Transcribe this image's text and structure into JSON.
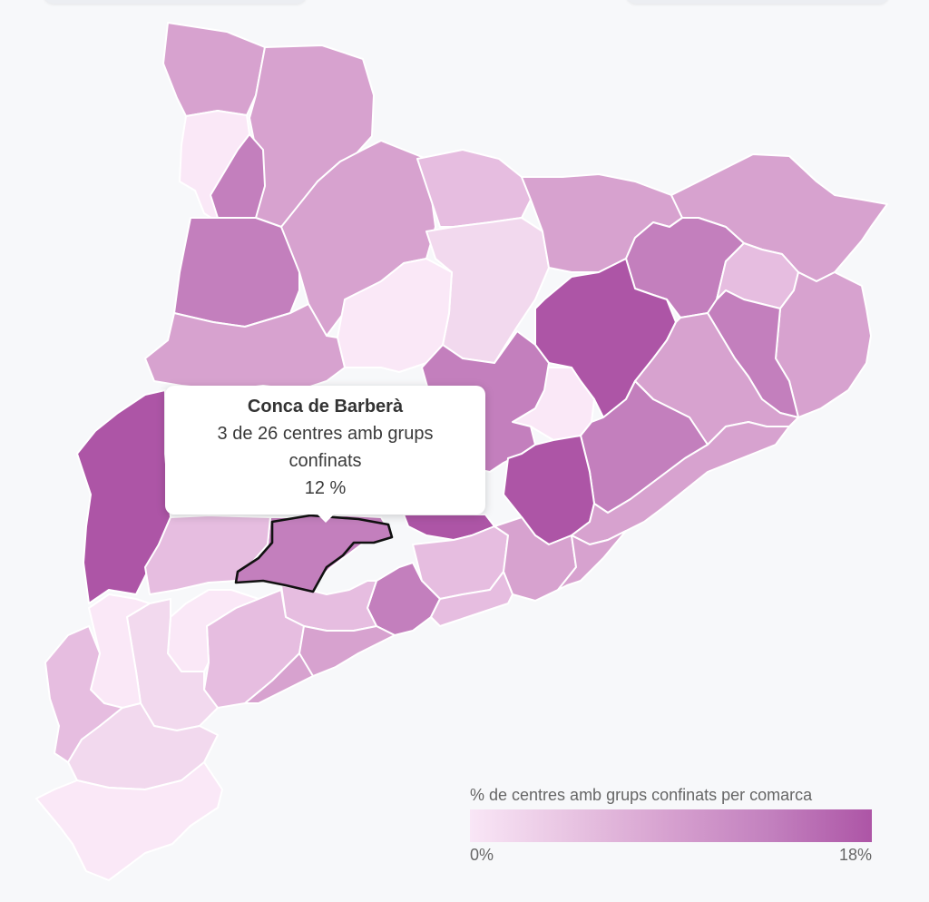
{
  "map": {
    "colors": {
      "c0": "#fae8f7",
      "c1": "#f2d9ee",
      "c2": "#e6bde0",
      "c3": "#d7a2cf",
      "c4": "#c37fbd",
      "c5": "#ad55a6",
      "highlight_stroke": "#111111"
    }
  },
  "tooltip": {
    "title": "Conca de Barberà",
    "line1": "3 de 26 centres amb grups",
    "line2": "confinats",
    "value": "12 %"
  },
  "legend": {
    "title": "% de centres amb grups confinats per comarca",
    "min_label": "0%",
    "max_label": "18%",
    "color_min": "#f9e6f6",
    "color_max": "#ad55a6"
  }
}
